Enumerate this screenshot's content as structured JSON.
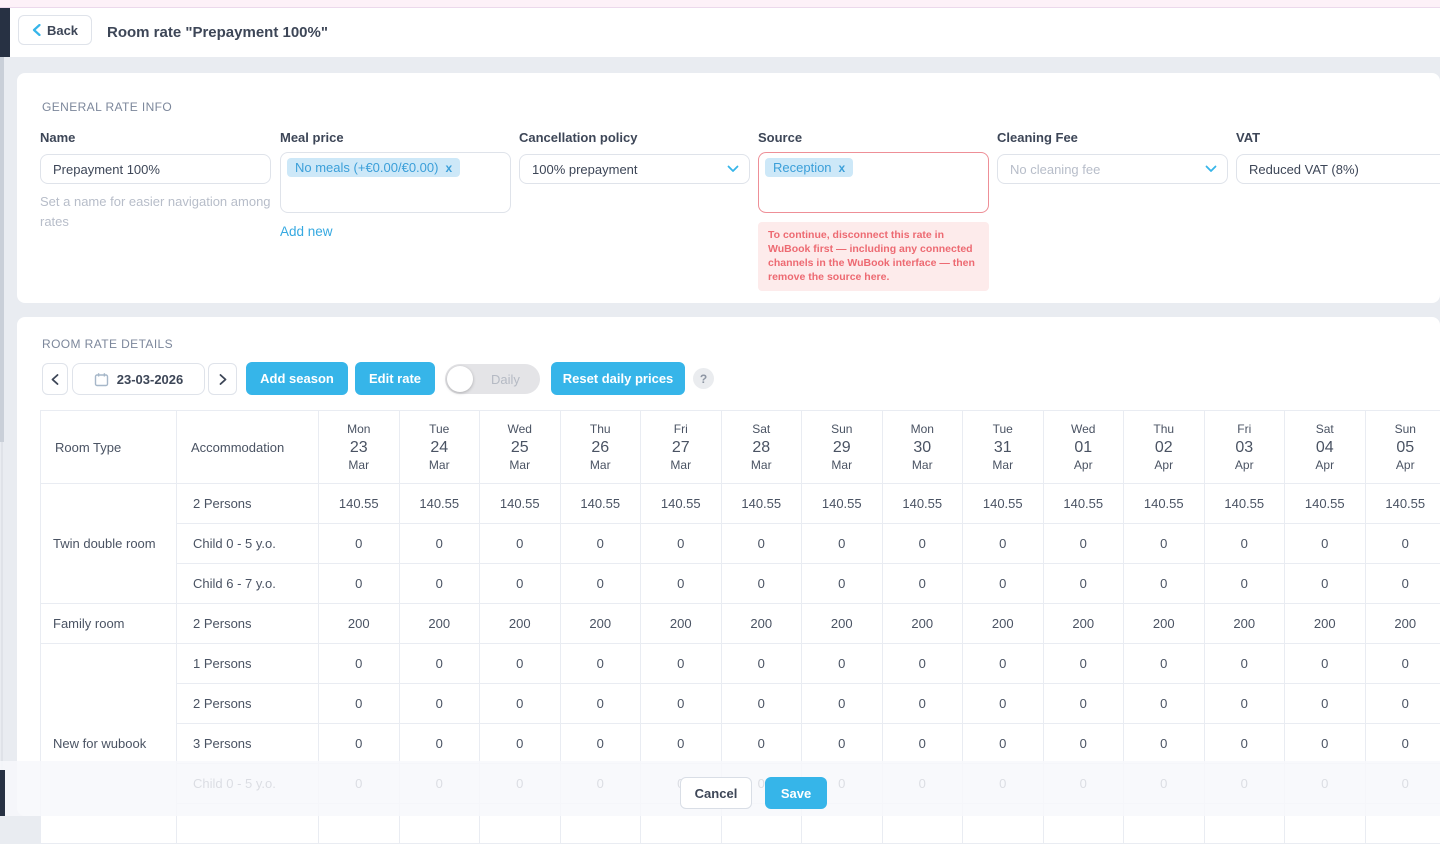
{
  "topbar": {
    "back_label": "Back",
    "title": "Room rate \"Prepayment 100%\""
  },
  "general": {
    "section_title": "GENERAL RATE INFO",
    "name": {
      "label": "Name",
      "value": "Prepayment 100%",
      "helper": "Set a name for easier navigation among rates"
    },
    "meal_price": {
      "label": "Meal price",
      "tag": "No meals (+€0.00/€0.00)",
      "tag_remove": "x",
      "add_new": "Add new"
    },
    "cancellation_policy": {
      "label": "Cancellation policy",
      "value": "100% prepayment"
    },
    "source": {
      "label": "Source",
      "tag": "Reception",
      "tag_remove": "x",
      "error": "To continue, disconnect this rate in WuBook first — including any connected channels in the WuBook interface — then remove the source here."
    },
    "cleaning_fee": {
      "label": "Cleaning Fee",
      "placeholder": "No cleaning fee"
    },
    "vat": {
      "label": "VAT",
      "value": "Reduced VAT (8%)"
    }
  },
  "details": {
    "section_title": "ROOM RATE DETAILS",
    "date": "23-03-2026",
    "buttons": {
      "add_season": "Add season",
      "edit_rate": "Edit rate",
      "daily_toggle": "Daily",
      "reset_daily": "Reset daily prices",
      "help": "?"
    }
  },
  "table": {
    "room_type_header": "Room Type",
    "accommodation_header": "Accommodation",
    "dates": [
      {
        "dow": "Mon",
        "day": "23",
        "mon": "Mar"
      },
      {
        "dow": "Tue",
        "day": "24",
        "mon": "Mar"
      },
      {
        "dow": "Wed",
        "day": "25",
        "mon": "Mar"
      },
      {
        "dow": "Thu",
        "day": "26",
        "mon": "Mar"
      },
      {
        "dow": "Fri",
        "day": "27",
        "mon": "Mar"
      },
      {
        "dow": "Sat",
        "day": "28",
        "mon": "Mar"
      },
      {
        "dow": "Sun",
        "day": "29",
        "mon": "Mar"
      },
      {
        "dow": "Mon",
        "day": "30",
        "mon": "Mar"
      },
      {
        "dow": "Tue",
        "day": "31",
        "mon": "Mar"
      },
      {
        "dow": "Wed",
        "day": "01",
        "mon": "Apr"
      },
      {
        "dow": "Thu",
        "day": "02",
        "mon": "Apr"
      },
      {
        "dow": "Fri",
        "day": "03",
        "mon": "Apr"
      },
      {
        "dow": "Sat",
        "day": "04",
        "mon": "Apr"
      },
      {
        "dow": "Sun",
        "day": "05",
        "mon": "Apr"
      }
    ],
    "groups": [
      {
        "room": "Twin double room",
        "rows": [
          {
            "label": "2 Persons",
            "values": [
              "140.55",
              "140.55",
              "140.55",
              "140.55",
              "140.55",
              "140.55",
              "140.55",
              "140.55",
              "140.55",
              "140.55",
              "140.55",
              "140.55",
              "140.55",
              "140.55"
            ]
          },
          {
            "label": "Child 0 - 5 y.o.",
            "values": [
              "0",
              "0",
              "0",
              "0",
              "0",
              "0",
              "0",
              "0",
              "0",
              "0",
              "0",
              "0",
              "0",
              "0"
            ]
          },
          {
            "label": "Child 6 - 7 y.o.",
            "values": [
              "0",
              "0",
              "0",
              "0",
              "0",
              "0",
              "0",
              "0",
              "0",
              "0",
              "0",
              "0",
              "0",
              "0"
            ]
          }
        ]
      },
      {
        "room": "Family room",
        "rows": [
          {
            "label": "2 Persons",
            "values": [
              "200",
              "200",
              "200",
              "200",
              "200",
              "200",
              "200",
              "200",
              "200",
              "200",
              "200",
              "200",
              "200",
              "200"
            ]
          }
        ]
      },
      {
        "room": "New for wubook",
        "rows": [
          {
            "label": "1 Persons",
            "values": [
              "0",
              "0",
              "0",
              "0",
              "0",
              "0",
              "0",
              "0",
              "0",
              "0",
              "0",
              "0",
              "0",
              "0"
            ]
          },
          {
            "label": "2 Persons",
            "values": [
              "0",
              "0",
              "0",
              "0",
              "0",
              "0",
              "0",
              "0",
              "0",
              "0",
              "0",
              "0",
              "0",
              "0"
            ]
          },
          {
            "label": "3 Persons",
            "values": [
              "0",
              "0",
              "0",
              "0",
              "0",
              "0",
              "0",
              "0",
              "0",
              "0",
              "0",
              "0",
              "0",
              "0"
            ]
          },
          {
            "label": "Child 0 - 5 y.o.",
            "values": [
              "0",
              "0",
              "0",
              "0",
              "0",
              "0",
              "0",
              "0",
              "0",
              "0",
              "0",
              "0",
              "0",
              "0"
            ]
          },
          {
            "label": "",
            "values": [
              "",
              "",
              "",
              "",
              "",
              "",
              "",
              "",
              "",
              "",
              "",
              "",
              "",
              ""
            ]
          }
        ]
      }
    ]
  },
  "footer": {
    "cancel": "Cancel",
    "save": "Save"
  },
  "colors": {
    "accent": "#36b5e9",
    "link": "#36a9e1",
    "tag_bg": "#cde8f8",
    "tag_text": "#3b9fd9",
    "error_border": "#ee8f97",
    "error_text": "#ed6a72",
    "error_bg": "#fdebeb",
    "navy": "#273143",
    "page_bg": "#e9ecf1",
    "top_strip": "#fdf1f8",
    "border": "#dfe3ea",
    "table_border": "#e9ecf2",
    "text": "#3d4657",
    "muted": "#b7bdc9",
    "section": "#7c879b",
    "cell_text": "#4a5363"
  }
}
